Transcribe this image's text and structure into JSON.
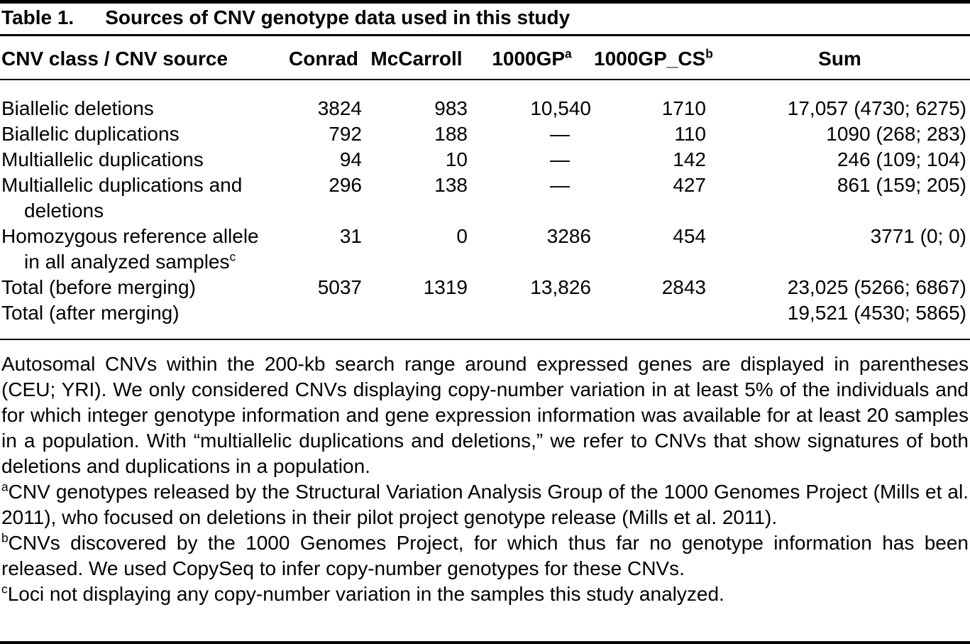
{
  "table": {
    "label": "Table 1.",
    "title": "Sources of CNV genotype data used in this study",
    "columns": {
      "class": "CNV class / CNV source",
      "conrad": "Conrad",
      "mccarroll": "McCarroll",
      "gp": "1000GP",
      "gp_marker": "a",
      "gpcs": "1000GP_CS",
      "gpcs_marker": "b",
      "sum": "Sum"
    },
    "rows": [
      {
        "label": "Biallelic deletions",
        "conrad": "3824",
        "mccarroll": "983",
        "gp": "10,540",
        "gpcs": "1710",
        "sum": "17,057 (4730; 6275)"
      },
      {
        "label": "Biallelic duplications",
        "conrad": "792",
        "mccarroll": "188",
        "gp": "—",
        "gpcs": "110",
        "sum": "1090 (268; 283)"
      },
      {
        "label": "Multiallelic duplications",
        "conrad": "94",
        "mccarroll": "10",
        "gp": "—",
        "gpcs": "142",
        "sum": "246 (109; 104)"
      },
      {
        "label_line1": "Multiallelic duplications and",
        "label_line2": "deletions",
        "conrad": "296",
        "mccarroll": "138",
        "gp": "—",
        "gpcs": "427",
        "sum": "861 (159; 205)"
      },
      {
        "label_line1": "Homozygous reference allele",
        "label_line2": "in all analyzed samples",
        "label_marker": "c",
        "conrad": "31",
        "mccarroll": "0",
        "gp": "3286",
        "gpcs": "454",
        "sum": "3771 (0; 0)"
      },
      {
        "label": "Total (before merging)",
        "conrad": "5037",
        "mccarroll": "1319",
        "gp": "13,826",
        "gpcs": "2843",
        "sum": "23,025 (5266; 6867)"
      },
      {
        "label": "Total (after merging)",
        "sum": "19,521 (4530; 5865)"
      }
    ]
  },
  "footnotes": {
    "general": "Autosomal CNVs within the 200-kb search range around expressed genes are displayed in parentheses (CEU; YRI). We only considered CNVs displaying copy-number variation in at least 5% of the individuals and for which integer genotype information and gene expression information was available for at least 20 samples in a population. With “multiallelic duplications and deletions,” we refer to CNVs that show signatures of both deletions and duplications in a population.",
    "a_marker": "a",
    "a_text": "CNV genotypes released by the Structural Variation Analysis Group of the 1000 Genomes Project (Mills et al. 2011), who focused on deletions in their pilot project genotype release (Mills et al. 2011).",
    "b_marker": "b",
    "b_text": "CNVs discovered by the 1000 Genomes Project, for which thus far no genotype information has been released. We used CopySeq to infer copy-number genotypes for these CNVs.",
    "c_marker": "c",
    "c_text": "Loci not displaying any copy-number variation in the samples this study analyzed."
  }
}
